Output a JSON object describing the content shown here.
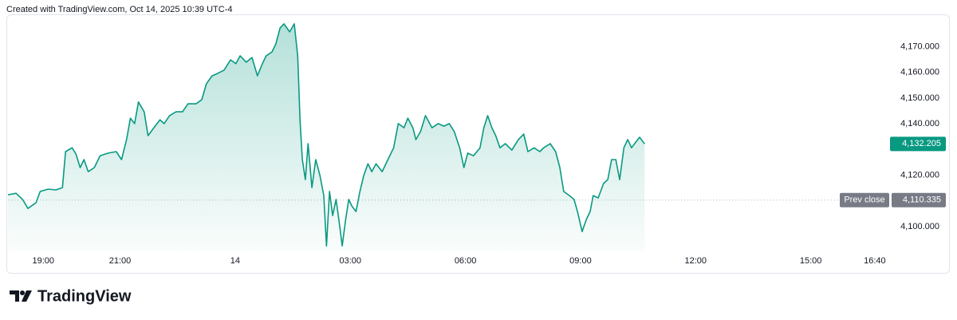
{
  "credit": "Created with TradingView.com, Oct 14, 2025 10:39 UTC-4",
  "brand": "TradingView",
  "chart_data": {
    "type": "area",
    "color": "#089981",
    "x": [
      0.08,
      0.29,
      0.46,
      0.6,
      0.81,
      0.92,
      1.13,
      1.33,
      1.5,
      1.58,
      1.75,
      1.85,
      1.96,
      2.06,
      2.17,
      2.33,
      2.48,
      2.69,
      2.9,
      3.04,
      3.17,
      3.27,
      3.38,
      3.48,
      3.63,
      3.73,
      3.88,
      4.04,
      4.15,
      4.29,
      4.46,
      4.63,
      4.77,
      4.98,
      5.13,
      5.25,
      5.4,
      5.54,
      5.71,
      5.88,
      6.02,
      6.13,
      6.29,
      6.44,
      6.58,
      6.71,
      6.81,
      6.96,
      7.06,
      7.17,
      7.27,
      7.42,
      7.54,
      7.63,
      7.69,
      7.75,
      7.83,
      7.9,
      8.0,
      8.1,
      8.21,
      8.31,
      8.38,
      8.46,
      8.54,
      8.63,
      8.73,
      8.79,
      8.88,
      8.96,
      9.04,
      9.15,
      9.25,
      9.35,
      9.46,
      9.56,
      9.67,
      9.83,
      9.98,
      10.13,
      10.25,
      10.4,
      10.5,
      10.63,
      10.71,
      10.83,
      10.96,
      11.13,
      11.29,
      11.44,
      11.58,
      11.71,
      11.85,
      11.96,
      12.06,
      12.21,
      12.38,
      12.48,
      12.58,
      12.69,
      12.79,
      12.9,
      13.04,
      13.21,
      13.38,
      13.52,
      13.63,
      13.79,
      13.94,
      14.04,
      14.21,
      14.35,
      14.46,
      14.56,
      14.71,
      14.83,
      14.92,
      15.04,
      15.15,
      15.25,
      15.33,
      15.46,
      15.6,
      15.71,
      15.81,
      15.92,
      16.02,
      16.13,
      16.23,
      16.33,
      16.44,
      16.54,
      16.67
    ],
    "values": [
      4112.4,
      4113.0,
      4110.6,
      4107.1,
      4109.3,
      4113.7,
      4114.6,
      4114.3,
      4115.2,
      4129.2,
      4130.7,
      4128.3,
      4123.0,
      4126.1,
      4121.4,
      4123.0,
      4127.6,
      4128.6,
      4129.2,
      4126.1,
      4133.9,
      4142.2,
      4140.1,
      4148.5,
      4144.7,
      4135.4,
      4138.5,
      4141.6,
      4140.1,
      4143.2,
      4144.7,
      4144.7,
      4147.8,
      4147.8,
      4149.4,
      4155.6,
      4158.7,
      4159.6,
      4160.9,
      4164.9,
      4163.4,
      4166.5,
      4164.0,
      4165.8,
      4158.7,
      4163.4,
      4166.5,
      4168.0,
      4171.1,
      4177.3,
      4178.9,
      4175.8,
      4178.9,
      4166.5,
      4141.6,
      4126.1,
      4118.3,
      4132.3,
      4115.2,
      4126.1,
      4119.9,
      4112.1,
      4092.5,
      4113.7,
      4104.3,
      4110.6,
      4099.7,
      4092.5,
      4102.8,
      4110.6,
      4108.1,
      4105.9,
      4113.7,
      4119.9,
      4124.5,
      4121.4,
      4124.5,
      4121.4,
      4126.1,
      4130.7,
      4140.1,
      4138.5,
      4142.2,
      4138.5,
      4133.9,
      4137.0,
      4143.2,
      4138.5,
      4140.1,
      4139.1,
      4140.1,
      4137.0,
      4130.7,
      4123.0,
      4128.6,
      4127.6,
      4130.7,
      4138.5,
      4143.2,
      4138.5,
      4135.4,
      4130.7,
      4132.3,
      4129.8,
      4133.9,
      4136.0,
      4129.2,
      4130.7,
      4129.2,
      4130.7,
      4132.3,
      4129.2,
      4123.0,
      4113.7,
      4112.1,
      4110.6,
      4105.9,
      4098.1,
      4102.8,
      4105.9,
      4112.1,
      4111.2,
      4116.8,
      4118.3,
      4126.1,
      4126.1,
      4118.3,
      4130.7,
      4133.9,
      4130.7,
      4132.9,
      4134.8,
      4132.205
    ],
    "current_price_label": "4,132.205",
    "prev_close": {
      "name": "Prev close",
      "value": 4110.335,
      "label": "4,110.335"
    },
    "xlim": [
      0.08,
      22.94
    ],
    "xticks": [
      {
        "value": 1,
        "label": "19:00"
      },
      {
        "value": 3,
        "label": "21:00"
      },
      {
        "value": 6,
        "label": "14"
      },
      {
        "value": 9,
        "label": "03:00"
      },
      {
        "value": 12,
        "label": "06:00"
      },
      {
        "value": 15,
        "label": "09:00"
      },
      {
        "value": 18,
        "label": "12:00"
      },
      {
        "value": 21,
        "label": "15:00"
      },
      {
        "value": 22.667,
        "label": "16:40"
      }
    ],
    "ylim": [
      4090.4,
      4182.6
    ],
    "yticks": [
      {
        "value": 4100,
        "label": "4,100.000"
      },
      {
        "value": 4120,
        "label": "4,120.000"
      },
      {
        "value": 4140,
        "label": "4,140.000"
      },
      {
        "value": 4150,
        "label": "4,150.000"
      },
      {
        "value": 4160,
        "label": "4,160.000"
      },
      {
        "value": 4170,
        "label": "4,170.000"
      }
    ]
  }
}
